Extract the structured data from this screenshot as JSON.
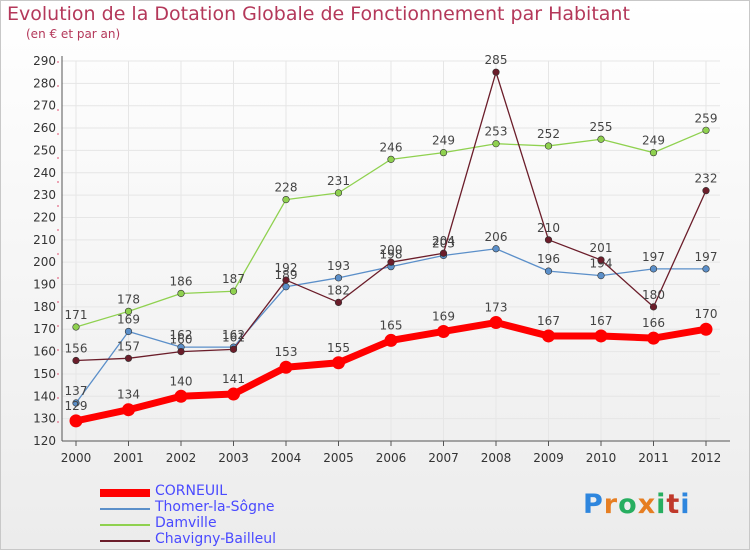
{
  "header": {
    "title": "Evolution de la Dotation Globale de Fonctionnement par Habitant",
    "subtitle": "(en € et par an)"
  },
  "logo": {
    "text": "Proxiti"
  },
  "chart_data": {
    "type": "line",
    "title": "Evolution de la Dotation Globale de Fonctionnement par Habitant",
    "subtitle": "(en € et par an)",
    "xlabel": "",
    "ylabel": "",
    "x": [
      2000,
      2001,
      2002,
      2003,
      2004,
      2005,
      2006,
      2007,
      2008,
      2009,
      2010,
      2011,
      2012
    ],
    "ylim": [
      120,
      290
    ],
    "yticks": [
      120,
      130,
      140,
      150,
      160,
      170,
      180,
      190,
      200,
      210,
      220,
      230,
      240,
      250,
      260,
      270,
      280,
      290
    ],
    "grid": true,
    "legend_position": "bottom-left",
    "series": [
      {
        "name": "CORNEUIL",
        "color": "#ff0000",
        "values": [
          129,
          134,
          140,
          141,
          153,
          155,
          165,
          169,
          173,
          167,
          167,
          166,
          170
        ]
      },
      {
        "name": "Thomer-la-Sôgne",
        "color": "#5b8fc9",
        "values": [
          137,
          169,
          162,
          162,
          189,
          193,
          198,
          203,
          206,
          196,
          194,
          197,
          197
        ]
      },
      {
        "name": "Damville",
        "color": "#8fd14f",
        "values": [
          171,
          178,
          186,
          187,
          228,
          231,
          246,
          249,
          253,
          252,
          255,
          249,
          259
        ]
      },
      {
        "name": "Chavigny-Bailleul",
        "color": "#6b1d2a",
        "values": [
          156,
          157,
          160,
          161,
          192,
          182,
          200,
          204,
          285,
          210,
          201,
          180,
          232
        ]
      }
    ]
  }
}
